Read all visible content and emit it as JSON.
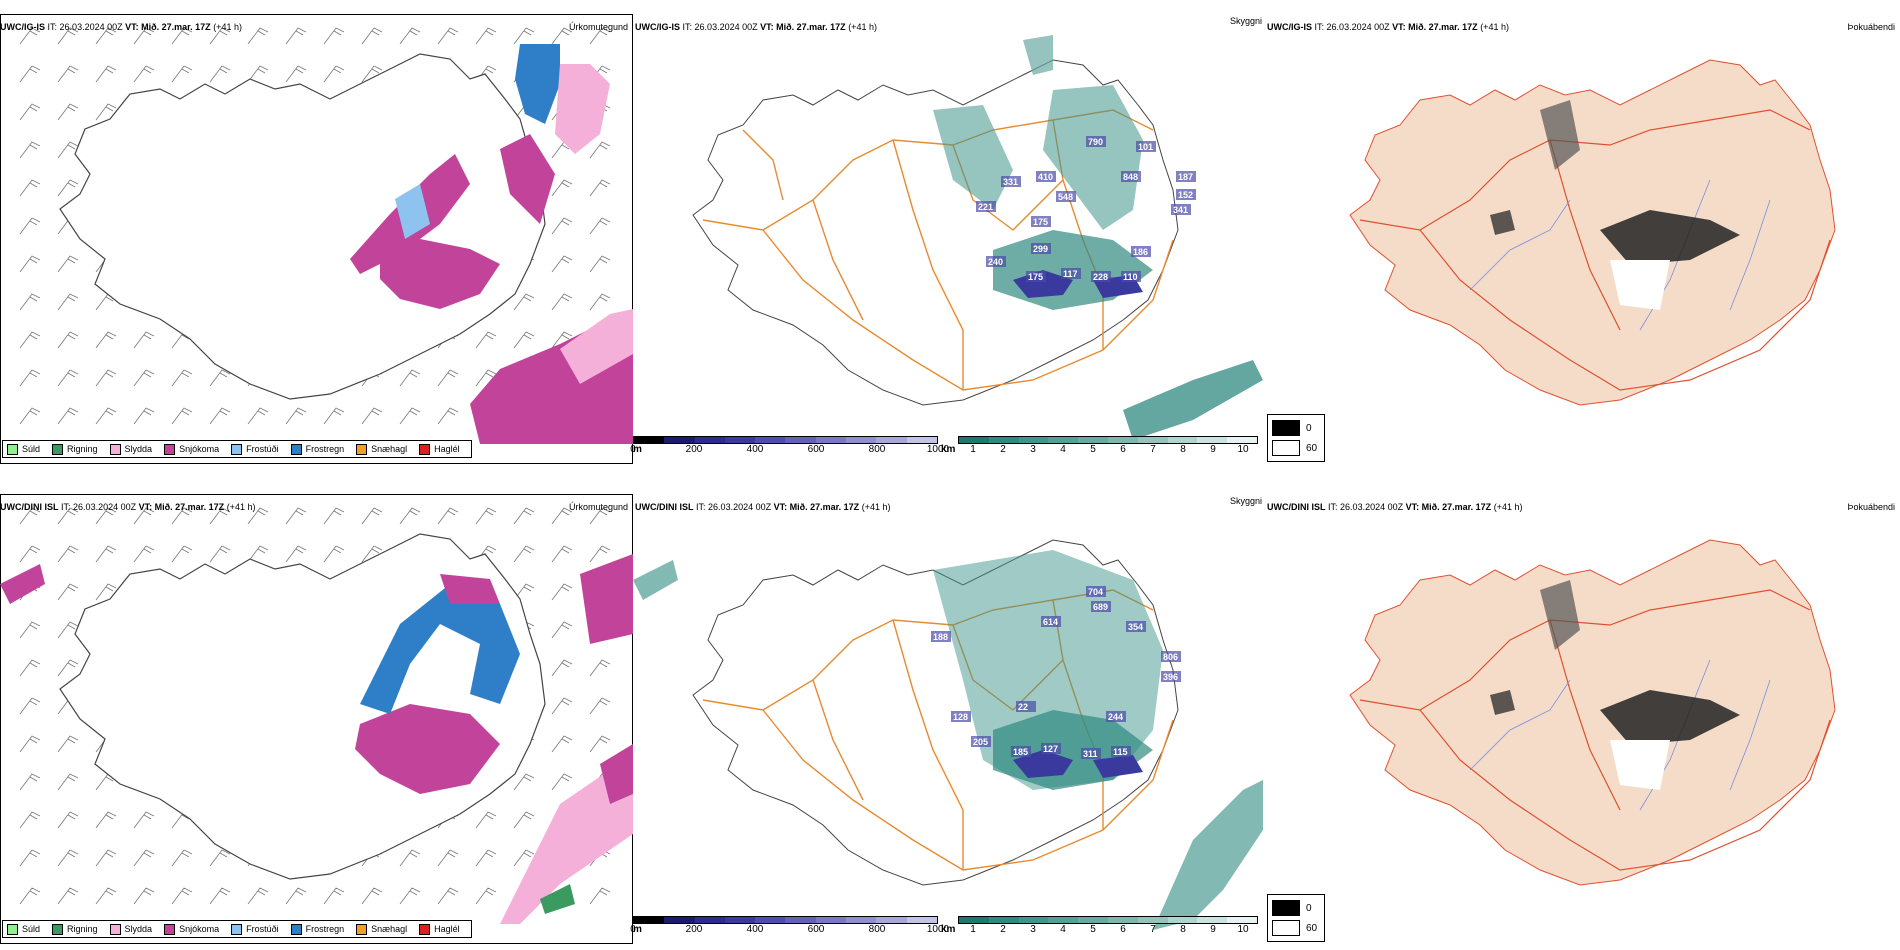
{
  "rows": [
    {
      "model": "UWC/IG-IS",
      "it_label": "IT:",
      "it_value": "26.03.2024 00Z",
      "vt_label": "VT:",
      "vt_value": "Mið. 27.mar. 17Z",
      "lead": "(+41 h)",
      "title_precip": "Úrkomutegund",
      "title_vis": "Skyggni",
      "title_fog": "Þokuábendi"
    },
    {
      "model": "UWC/DINI ISL",
      "it_label": "IT:",
      "it_value": "26.03.2024 00Z",
      "vt_label": "VT:",
      "vt_value": "Mið. 27.mar. 17Z",
      "lead": "(+41 h)",
      "title_precip": "Úrkomutegund",
      "title_vis": "Skyggni",
      "title_fog": "Þokuábendi"
    }
  ],
  "precip_legend": [
    {
      "label": "Súld",
      "color": "#90ee90"
    },
    {
      "label": "Rigning",
      "color": "#3a9a60"
    },
    {
      "label": "Slydda",
      "color": "#f4b0d8"
    },
    {
      "label": "Snjókoma",
      "color": "#c2449a"
    },
    {
      "label": "Frostúði",
      "color": "#8ec3f0"
    },
    {
      "label": "Frostregn",
      "color": "#2f7fc8"
    },
    {
      "label": "Snæhagl",
      "color": "#f0a020"
    },
    {
      "label": "Haglél",
      "color": "#e02020"
    }
  ],
  "ceiling_bar": {
    "unit": "m",
    "ticks": [
      "0",
      "200",
      "400",
      "600",
      "800",
      "1000"
    ],
    "colors": [
      "#000000",
      "#1a1a6e",
      "#2c2c8c",
      "#3a3a9e",
      "#4e4eb0",
      "#6262b8",
      "#7a7ac4",
      "#9090cc",
      "#a8a8d8",
      "#c4c4e6"
    ]
  },
  "vis_bar": {
    "unit": "km",
    "ticks": [
      "1",
      "2",
      "3",
      "4",
      "5",
      "6",
      "7",
      "8",
      "9",
      "10"
    ],
    "colors": [
      "#1e7a70",
      "#2f8a80",
      "#3f968c",
      "#549f96",
      "#69aaa2",
      "#7fb6ae",
      "#96c4bd",
      "#b0d4ce",
      "#cce4e0",
      "#e8f3f1"
    ]
  },
  "fog_legend": [
    {
      "label": "0",
      "color": "#000000"
    },
    {
      "label": "60",
      "color": "#ffffff"
    }
  ],
  "cloud_labels_top": [
    "790",
    "410",
    "548",
    "101",
    "848",
    "187",
    "152",
    "341",
    "331",
    "221",
    "175",
    "299",
    "240",
    "175",
    "117",
    "228",
    "110",
    "186"
  ],
  "cloud_labels_bottom": [
    "704",
    "689",
    "614",
    "354",
    "806",
    "396",
    "188",
    "22",
    "185",
    "127",
    "311",
    "115",
    "244",
    "128",
    "205"
  ]
}
